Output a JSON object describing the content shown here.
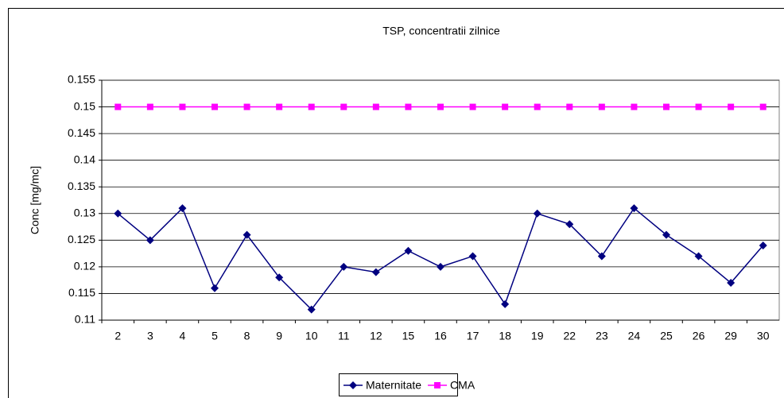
{
  "chart_data": {
    "type": "line",
    "title": "TSP, concentratii zilnice",
    "y_label": "Conc [mg/mc]",
    "categories": [
      "2",
      "3",
      "4",
      "5",
      "8",
      "9",
      "10",
      "11",
      "12",
      "15",
      "16",
      "17",
      "18",
      "19",
      "22",
      "23",
      "24",
      "25",
      "26",
      "29",
      "30"
    ],
    "series": [
      {
        "name": "Maternitate",
        "color": "#000080",
        "marker": "diamond",
        "values": [
          0.13,
          0.125,
          0.131,
          0.116,
          0.126,
          0.118,
          0.112,
          0.12,
          0.119,
          0.123,
          0.12,
          0.122,
          0.113,
          0.13,
          0.128,
          0.122,
          0.131,
          0.126,
          0.122,
          0.117,
          0.124
        ]
      },
      {
        "name": "CMA",
        "color": "#ff00ff",
        "marker": "square",
        "values": [
          0.15,
          0.15,
          0.15,
          0.15,
          0.15,
          0.15,
          0.15,
          0.15,
          0.15,
          0.15,
          0.15,
          0.15,
          0.15,
          0.15,
          0.15,
          0.15,
          0.15,
          0.15,
          0.15,
          0.15,
          0.15
        ]
      }
    ],
    "ylim": [
      0.11,
      0.155
    ],
    "yticks": [
      0.11,
      0.115,
      0.12,
      0.125,
      0.13,
      0.135,
      0.14,
      0.145,
      0.15,
      0.155
    ],
    "grid": true,
    "legend": "bottom"
  }
}
